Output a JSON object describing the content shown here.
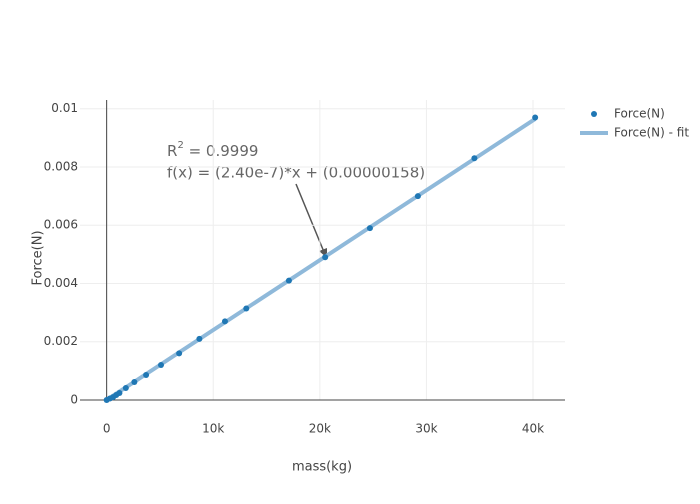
{
  "chart_data": {
    "type": "scatter",
    "xlabel": "mass(kg)",
    "ylabel": "Force(N)",
    "series": [
      {
        "name": "Force(N)",
        "color": "#1f77b4",
        "mode": "markers",
        "x": [
          0,
          300,
          600,
          900,
          1200,
          1800,
          2600,
          3700,
          5100,
          6800,
          8700,
          11100,
          13100,
          17100,
          20500,
          24700,
          29200,
          34500,
          40200
        ],
        "values": [
          0,
          5e-05,
          0.0001,
          0.00017,
          0.00024,
          0.00041,
          0.00062,
          0.00086,
          0.0012,
          0.0016,
          0.0021,
          0.0027,
          0.00314,
          0.0041,
          0.0049,
          0.0059,
          0.007,
          0.0083,
          0.0097
        ]
      },
      {
        "name": "Force(N) - fit",
        "color": "#8fb9da",
        "mode": "lines",
        "x": [
          0,
          40200
        ],
        "values": [
          1.58e-06,
          0.00964958
        ]
      }
    ],
    "annotation": {
      "r2_base": "R",
      "r2_sup": "2",
      "r2_rest": " = 0.9999",
      "equation": "f(x) = (2.40e-7)*x + (0.00000158)"
    },
    "xlim": [
      -2500,
      43000
    ],
    "ylim": [
      0,
      0.0103
    ],
    "xticks": [
      0,
      {
        "value": 10000,
        "label": "10k"
      },
      {
        "value": 20000,
        "label": "20k"
      },
      {
        "value": 30000,
        "label": "30k"
      },
      {
        "value": 40000,
        "label": "40k"
      }
    ],
    "yticks": [
      0,
      0.002,
      0.004,
      0.006,
      0.008,
      0.01
    ],
    "grid": true
  }
}
